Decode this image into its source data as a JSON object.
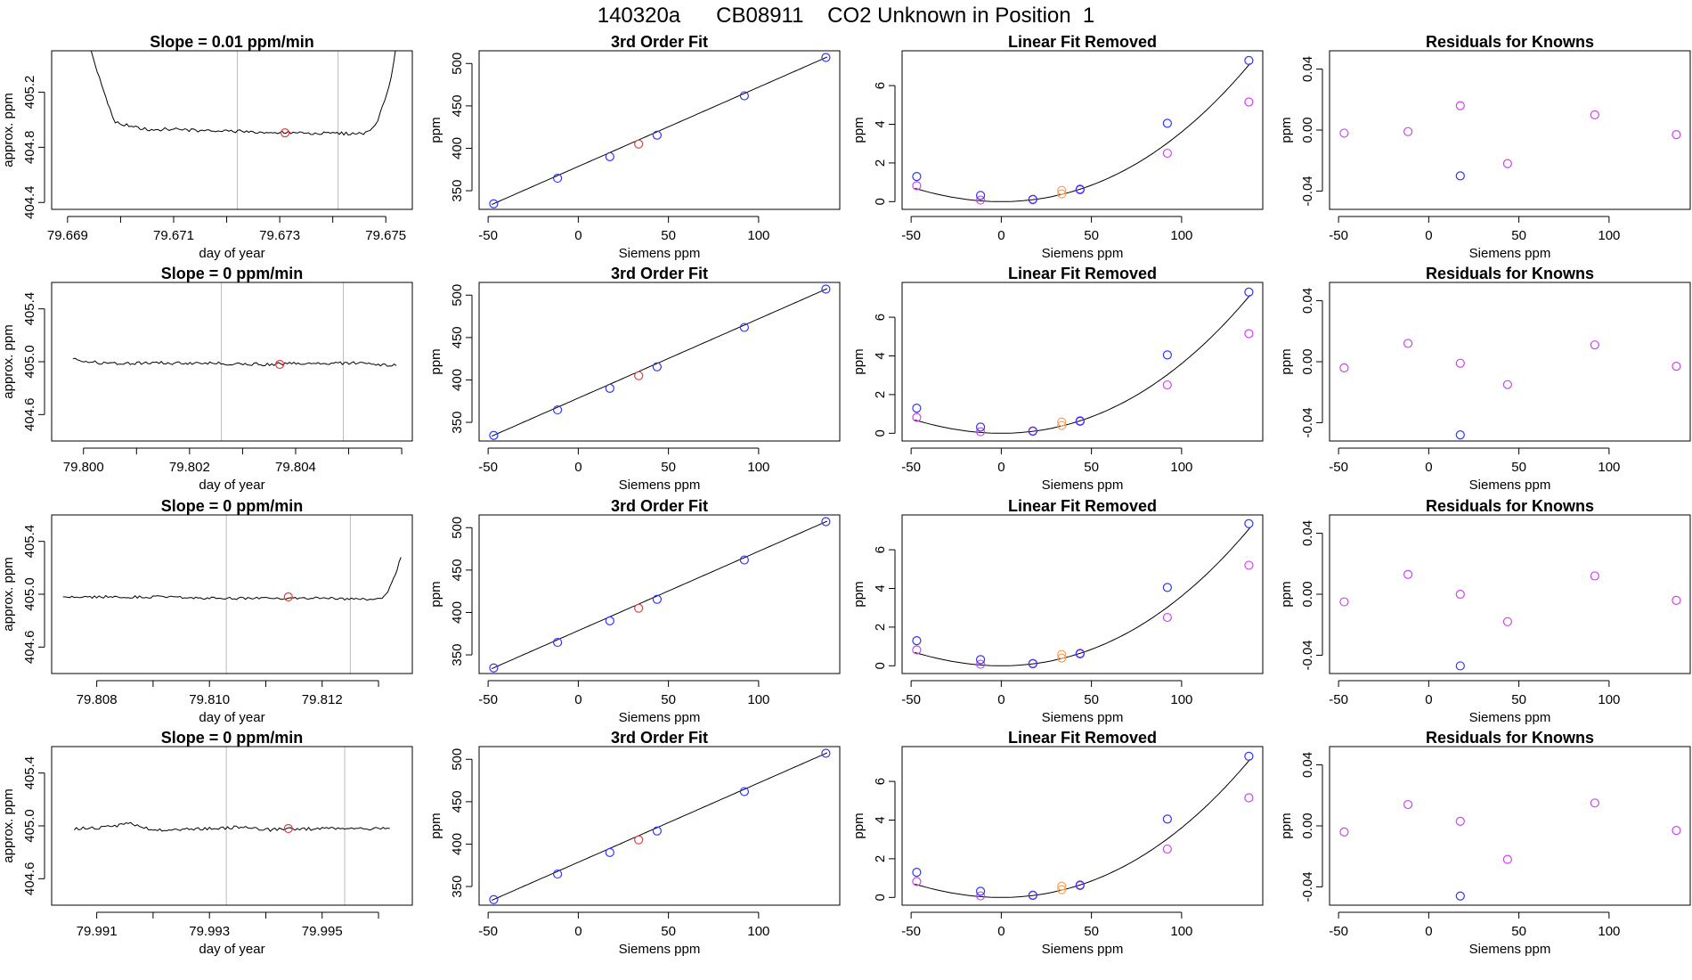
{
  "figure": {
    "title": "140320a      CB08911    CO2 Unknown in Position  1"
  },
  "colors": {
    "known": "#3333ff",
    "unknown": "#e83a3a",
    "linear_removed": "#cc44ee",
    "offset_point": "#f4a460",
    "line": "#000000",
    "marker_line": "#bbbbbb"
  },
  "chart_data": [
    {
      "type": "line",
      "title": "Slope =  0.01  ppm/min",
      "xlabel": "day of year",
      "ylabel": "approx. ppm",
      "xlim": [
        79.6687,
        79.6755
      ],
      "ylim": [
        404.35,
        405.5
      ],
      "xticks": [
        79.669,
        79.67,
        79.671,
        79.672,
        79.673,
        79.674,
        79.675
      ],
      "xtick_labels": [
        "79.669",
        "",
        "79.671",
        "",
        "79.673",
        "",
        "79.675"
      ],
      "yticks": [
        404.4,
        404.8,
        405.2
      ],
      "ytick_labels": [
        "404.4",
        "404.8",
        "405.2"
      ],
      "markers": [
        79.6722,
        79.6741
      ],
      "unknown_point": {
        "x": 79.6731,
        "y": 404.905
      },
      "series": [
        {
          "points": [
            [
              79.6694,
              405.55
            ],
            [
              79.6696,
              405.3
            ],
            [
              79.6698,
              405.08
            ],
            [
              79.6699,
              404.98
            ],
            [
              79.6702,
              404.95
            ],
            [
              79.6705,
              404.93
            ],
            [
              79.671,
              404.93
            ],
            [
              79.6715,
              404.92
            ],
            [
              79.672,
              404.92
            ],
            [
              79.6725,
              404.91
            ],
            [
              79.673,
              404.91
            ],
            [
              79.6735,
              404.9
            ],
            [
              79.674,
              404.9
            ],
            [
              79.6745,
              404.9
            ],
            [
              79.6747,
              404.91
            ],
            [
              79.6748,
              404.95
            ],
            [
              79.6749,
              405.05
            ],
            [
              79.6751,
              405.3
            ],
            [
              79.6752,
              405.55
            ]
          ],
          "noise": 0.012
        }
      ]
    },
    {
      "type": "scatter",
      "title": "3rd Order Fit",
      "xlabel": "Siemens ppm",
      "ylabel": "ppm",
      "xlim": [
        -55,
        145
      ],
      "ylim": [
        328,
        515
      ],
      "xticks": [
        -50,
        0,
        50,
        100
      ],
      "yticks": [
        350,
        400,
        450,
        500
      ],
      "known": [
        [
          -46.9,
          334.6
        ],
        [
          -11.5,
          364.7
        ],
        [
          17.5,
          390.1
        ],
        [
          43.7,
          415.5
        ],
        [
          92.1,
          461.9
        ],
        [
          137.3,
          507.1
        ]
      ],
      "unknown": [
        [
          33.5,
          405.0
        ]
      ],
      "fit": {
        "kind": "linear",
        "a": 378.6,
        "b": 0.935
      }
    },
    {
      "type": "scatter",
      "title": "Linear Fit Removed",
      "xlabel": "Siemens ppm",
      "ylabel": "ppm",
      "xlim": [
        -55,
        145
      ],
      "ylim": [
        -0.4,
        7.8
      ],
      "xticks": [
        -50,
        0,
        50,
        100
      ],
      "yticks": [
        0,
        2,
        4,
        6
      ],
      "known": [
        [
          -46.9,
          1.3
        ],
        [
          -11.5,
          0.32
        ],
        [
          17.5,
          0.12
        ],
        [
          43.7,
          0.62
        ],
        [
          92.1,
          4.05
        ],
        [
          137.3,
          7.3
        ]
      ],
      "linear_removed": [
        [
          -46.9,
          0.82
        ],
        [
          -11.5,
          0.08
        ],
        [
          17.5,
          0.1
        ],
        [
          43.7,
          0.65
        ],
        [
          92.1,
          2.5
        ],
        [
          137.3,
          5.15
        ]
      ],
      "offset_points": [
        [
          33.5,
          0.58
        ],
        [
          33.5,
          0.4
        ]
      ],
      "fit": {
        "kind": "poly3",
        "c0": 0.0,
        "c1": 0.0,
        "c2": 0.00032,
        "c3": 4e-07
      }
    },
    {
      "type": "scatter",
      "title": "Residuals for Knowns",
      "xlabel": "Siemens ppm",
      "ylabel": "ppm",
      "xlim": [
        -55,
        145
      ],
      "ylim": [
        -0.052,
        0.052
      ],
      "xticks": [
        -50,
        0,
        50,
        100
      ],
      "yticks": [
        -0.04,
        0.0,
        0.04
      ],
      "ytick_labels": [
        "-0.04",
        "0.00",
        "0.04"
      ],
      "linear_removed": [
        [
          -46.9,
          -0.002
        ],
        [
          -11.5,
          -0.001
        ],
        [
          17.5,
          0.016
        ],
        [
          43.7,
          -0.022
        ],
        [
          92.1,
          0.01
        ],
        [
          137.3,
          -0.003
        ]
      ],
      "known": [
        [
          17.5,
          -0.03
        ]
      ]
    },
    {
      "type": "line",
      "title": "Slope =  0  ppm/min",
      "xlabel": "day of year",
      "ylabel": "approx. ppm",
      "xlim": [
        79.7994,
        79.8062
      ],
      "ylim": [
        404.4,
        405.6
      ],
      "xticks": [
        79.8,
        79.801,
        79.802,
        79.803,
        79.804,
        79.805,
        79.806
      ],
      "xtick_labels": [
        "79.800",
        "",
        "79.802",
        "",
        "79.804",
        "",
        ""
      ],
      "yticks": [
        404.6,
        405.0,
        405.4
      ],
      "ytick_labels": [
        "404.6",
        "405.0",
        "405.4"
      ],
      "markers": [
        79.8026,
        79.8049
      ],
      "unknown_point": {
        "x": 79.8037,
        "y": 404.98
      },
      "series": [
        {
          "points": [
            [
              79.7998,
              405.02
            ],
            [
              79.8003,
              404.99
            ],
            [
              79.8013,
              404.99
            ],
            [
              79.8023,
              404.99
            ],
            [
              79.8033,
              404.98
            ],
            [
              79.8043,
              404.99
            ],
            [
              79.8053,
              404.99
            ],
            [
              79.8059,
              404.97
            ]
          ],
          "noise": 0.012
        }
      ]
    },
    {
      "type": "scatter",
      "title": "3rd Order Fit",
      "xlabel": "Siemens ppm",
      "ylabel": "ppm",
      "xlim": [
        -55,
        145
      ],
      "ylim": [
        328,
        515
      ],
      "xticks": [
        -50,
        0,
        50,
        100
      ],
      "yticks": [
        350,
        400,
        450,
        500
      ],
      "known": [
        [
          -46.9,
          334.6
        ],
        [
          -11.5,
          364.7
        ],
        [
          17.5,
          390.1
        ],
        [
          43.7,
          415.5
        ],
        [
          92.1,
          461.9
        ],
        [
          137.3,
          507.1
        ]
      ],
      "unknown": [
        [
          33.5,
          405.0
        ]
      ],
      "fit": {
        "kind": "linear",
        "a": 378.6,
        "b": 0.935
      }
    },
    {
      "type": "scatter",
      "title": "Linear Fit Removed",
      "xlabel": "Siemens ppm",
      "ylabel": "ppm",
      "xlim": [
        -55,
        145
      ],
      "ylim": [
        -0.4,
        7.8
      ],
      "xticks": [
        -50,
        0,
        50,
        100
      ],
      "yticks": [
        0,
        2,
        4,
        6
      ],
      "known": [
        [
          -46.9,
          1.3
        ],
        [
          -11.5,
          0.32
        ],
        [
          17.5,
          0.12
        ],
        [
          43.7,
          0.62
        ],
        [
          92.1,
          4.05
        ],
        [
          137.3,
          7.3
        ]
      ],
      "linear_removed": [
        [
          -46.9,
          0.82
        ],
        [
          -11.5,
          0.08
        ],
        [
          17.5,
          0.1
        ],
        [
          43.7,
          0.65
        ],
        [
          92.1,
          2.5
        ],
        [
          137.3,
          5.15
        ]
      ],
      "offset_points": [
        [
          33.5,
          0.58
        ],
        [
          33.5,
          0.4
        ]
      ],
      "fit": {
        "kind": "poly3",
        "c0": 0.0,
        "c1": 0.0,
        "c2": 0.00032,
        "c3": 4e-07
      }
    },
    {
      "type": "scatter",
      "title": "Residuals for Knowns",
      "xlabel": "Siemens ppm",
      "ylabel": "ppm",
      "xlim": [
        -55,
        145
      ],
      "ylim": [
        -0.052,
        0.052
      ],
      "xticks": [
        -50,
        0,
        50,
        100
      ],
      "yticks": [
        -0.04,
        0.0,
        0.04
      ],
      "ytick_labels": [
        "-0.04",
        "0.00",
        "0.04"
      ],
      "linear_removed": [
        [
          -46.9,
          -0.004
        ],
        [
          -11.5,
          0.012
        ],
        [
          17.5,
          -0.001
        ],
        [
          43.7,
          -0.015
        ],
        [
          92.1,
          0.011
        ],
        [
          137.3,
          -0.003
        ]
      ],
      "known": [
        [
          17.5,
          -0.048
        ]
      ]
    },
    {
      "type": "line",
      "title": "Slope =  0  ppm/min",
      "xlabel": "day of year",
      "ylabel": "approx. ppm",
      "xlim": [
        79.8072,
        79.8136
      ],
      "ylim": [
        404.4,
        405.6
      ],
      "xticks": [
        79.808,
        79.809,
        79.81,
        79.811,
        79.812,
        79.813
      ],
      "xtick_labels": [
        "79.808",
        "",
        "79.810",
        "",
        "79.812",
        ""
      ],
      "yticks": [
        404.6,
        405.0,
        405.4
      ],
      "ytick_labels": [
        "404.6",
        "405.0",
        "405.4"
      ],
      "markers": [
        79.8103,
        79.8125
      ],
      "unknown_point": {
        "x": 79.8114,
        "y": 404.98
      },
      "series": [
        {
          "points": [
            [
              79.8074,
              404.98
            ],
            [
              79.808,
              404.98
            ],
            [
              79.809,
              404.98
            ],
            [
              79.81,
              404.97
            ],
            [
              79.811,
              404.97
            ],
            [
              79.812,
              404.97
            ],
            [
              79.8128,
              404.96
            ],
            [
              79.8131,
              404.98
            ],
            [
              79.8132,
              405.05
            ],
            [
              79.8133,
              405.15
            ],
            [
              79.8134,
              405.28
            ]
          ],
          "noise": 0.01
        }
      ]
    },
    {
      "type": "scatter",
      "title": "3rd Order Fit",
      "xlabel": "Siemens ppm",
      "ylabel": "ppm",
      "xlim": [
        -55,
        145
      ],
      "ylim": [
        328,
        515
      ],
      "xticks": [
        -50,
        0,
        50,
        100
      ],
      "yticks": [
        350,
        400,
        450,
        500
      ],
      "known": [
        [
          -46.9,
          334.6
        ],
        [
          -11.5,
          364.7
        ],
        [
          17.5,
          390.1
        ],
        [
          43.7,
          415.5
        ],
        [
          92.1,
          461.9
        ],
        [
          137.3,
          507.1
        ]
      ],
      "unknown": [
        [
          33.5,
          405.0
        ]
      ],
      "fit": {
        "kind": "linear",
        "a": 378.6,
        "b": 0.935
      }
    },
    {
      "type": "scatter",
      "title": "Linear Fit Removed",
      "xlabel": "Siemens ppm",
      "ylabel": "ppm",
      "xlim": [
        -55,
        145
      ],
      "ylim": [
        -0.4,
        7.8
      ],
      "xticks": [
        -50,
        0,
        50,
        100
      ],
      "yticks": [
        0,
        2,
        4,
        6
      ],
      "known": [
        [
          -46.9,
          1.3
        ],
        [
          -11.5,
          0.32
        ],
        [
          17.5,
          0.12
        ],
        [
          43.7,
          0.62
        ],
        [
          92.1,
          4.05
        ],
        [
          137.3,
          7.35
        ]
      ],
      "linear_removed": [
        [
          -46.9,
          0.82
        ],
        [
          -11.5,
          0.08
        ],
        [
          17.5,
          0.1
        ],
        [
          43.7,
          0.65
        ],
        [
          92.1,
          2.5
        ],
        [
          137.3,
          5.2
        ]
      ],
      "offset_points": [
        [
          33.5,
          0.58
        ],
        [
          33.5,
          0.4
        ]
      ],
      "fit": {
        "kind": "poly3",
        "c0": 0.0,
        "c1": 0.0,
        "c2": 0.00032,
        "c3": 4e-07
      }
    },
    {
      "type": "scatter",
      "title": "Residuals for Knowns",
      "xlabel": "Siemens ppm",
      "ylabel": "ppm",
      "xlim": [
        -55,
        145
      ],
      "ylim": [
        -0.052,
        0.052
      ],
      "xticks": [
        -50,
        0,
        50,
        100
      ],
      "yticks": [
        -0.04,
        0.0,
        0.04
      ],
      "ytick_labels": [
        "-0.04",
        "0.00",
        "0.04"
      ],
      "linear_removed": [
        [
          -46.9,
          -0.005
        ],
        [
          -11.5,
          0.013
        ],
        [
          17.5,
          0.0
        ],
        [
          43.7,
          -0.018
        ],
        [
          92.1,
          0.012
        ],
        [
          137.3,
          -0.004
        ]
      ],
      "known": [
        [
          17.5,
          -0.047
        ]
      ]
    },
    {
      "type": "line",
      "title": "Slope =  0  ppm/min",
      "xlabel": "day of year",
      "ylabel": "approx. ppm",
      "xlim": [
        79.9902,
        79.9966
      ],
      "ylim": [
        404.4,
        405.6
      ],
      "xticks": [
        79.991,
        79.992,
        79.993,
        79.994,
        79.995,
        79.996
      ],
      "xtick_labels": [
        "79.991",
        "",
        "79.993",
        "",
        "79.995",
        ""
      ],
      "yticks": [
        404.6,
        405.0,
        405.4
      ],
      "ytick_labels": [
        "404.6",
        "405.0",
        "405.4"
      ],
      "markers": [
        79.9933,
        79.9954
      ],
      "unknown_point": {
        "x": 79.9944,
        "y": 404.98
      },
      "series": [
        {
          "points": [
            [
              79.9906,
              404.98
            ],
            [
              79.9912,
              404.99
            ],
            [
              79.9916,
              405.02
            ],
            [
              79.992,
              404.97
            ],
            [
              79.993,
              404.98
            ],
            [
              79.9936,
              404.99
            ],
            [
              79.994,
              404.97
            ],
            [
              79.995,
              404.98
            ],
            [
              79.9962,
              404.98
            ]
          ],
          "noise": 0.012
        }
      ]
    },
    {
      "type": "scatter",
      "title": "3rd Order Fit",
      "xlabel": "Siemens ppm",
      "ylabel": "ppm",
      "xlim": [
        -55,
        145
      ],
      "ylim": [
        328,
        515
      ],
      "xticks": [
        -50,
        0,
        50,
        100
      ],
      "yticks": [
        350,
        400,
        450,
        500
      ],
      "known": [
        [
          -46.9,
          334.6
        ],
        [
          -11.5,
          364.7
        ],
        [
          17.5,
          390.1
        ],
        [
          43.7,
          415.5
        ],
        [
          92.1,
          461.9
        ],
        [
          137.3,
          507.1
        ]
      ],
      "unknown": [
        [
          33.5,
          405.0
        ]
      ],
      "fit": {
        "kind": "linear",
        "a": 378.6,
        "b": 0.935
      }
    },
    {
      "type": "scatter",
      "title": "Linear Fit Removed",
      "xlabel": "Siemens ppm",
      "ylabel": "ppm",
      "xlim": [
        -55,
        145
      ],
      "ylim": [
        -0.4,
        7.8
      ],
      "xticks": [
        -50,
        0,
        50,
        100
      ],
      "yticks": [
        0,
        2,
        4,
        6
      ],
      "known": [
        [
          -46.9,
          1.3
        ],
        [
          -11.5,
          0.32
        ],
        [
          17.5,
          0.12
        ],
        [
          43.7,
          0.62
        ],
        [
          92.1,
          4.05
        ],
        [
          137.3,
          7.3
        ]
      ],
      "linear_removed": [
        [
          -46.9,
          0.82
        ],
        [
          -11.5,
          0.08
        ],
        [
          17.5,
          0.1
        ],
        [
          43.7,
          0.65
        ],
        [
          92.1,
          2.5
        ],
        [
          137.3,
          5.15
        ]
      ],
      "offset_points": [
        [
          33.5,
          0.58
        ],
        [
          33.5,
          0.4
        ]
      ],
      "fit": {
        "kind": "poly3",
        "c0": 0.0,
        "c1": 0.0,
        "c2": 0.00032,
        "c3": 4e-07
      }
    },
    {
      "type": "scatter",
      "title": "Residuals for Knowns",
      "xlabel": "Siemens ppm",
      "ylabel": "ppm",
      "xlim": [
        -55,
        145
      ],
      "ylim": [
        -0.052,
        0.052
      ],
      "xticks": [
        -50,
        0,
        50,
        100
      ],
      "yticks": [
        -0.04,
        0.0,
        0.04
      ],
      "ytick_labels": [
        "-0.04",
        "0.00",
        "0.04"
      ],
      "linear_removed": [
        [
          -46.9,
          -0.004
        ],
        [
          -11.5,
          0.014
        ],
        [
          17.5,
          0.003
        ],
        [
          43.7,
          -0.022
        ],
        [
          92.1,
          0.015
        ],
        [
          137.3,
          -0.003
        ]
      ],
      "known": [
        [
          17.5,
          -0.046
        ]
      ]
    }
  ]
}
